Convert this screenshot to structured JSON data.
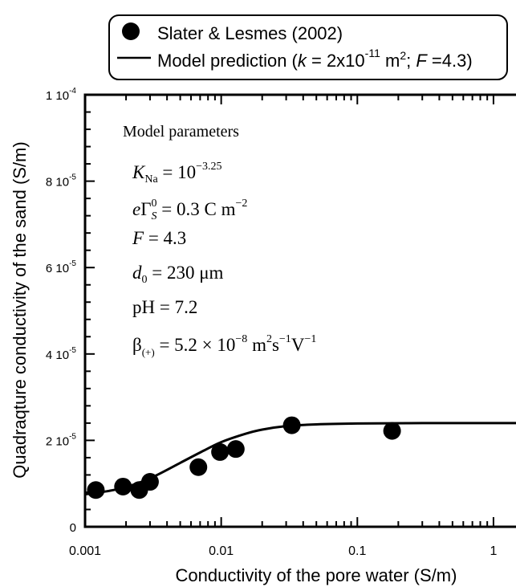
{
  "chart_data": {
    "type": "scatter",
    "xlabel": "Conductivity of the pore water (S/m)",
    "ylabel": "Quadraqture conductivity of the sand (S/m)",
    "x_scale": "log",
    "xlim": [
      0.001,
      2
    ],
    "ylim": [
      0,
      0.0001
    ],
    "x_ticks": [
      {
        "value": 0.001,
        "label": "0.001"
      },
      {
        "value": 0.01,
        "label": "0.01"
      },
      {
        "value": 0.1,
        "label": "0.1"
      },
      {
        "value": 1,
        "label": "1"
      }
    ],
    "y_ticks": [
      {
        "value": 0,
        "mant": "0",
        "exp": ""
      },
      {
        "value": 2e-05,
        "mant": "2 10",
        "exp": "-5"
      },
      {
        "value": 4e-05,
        "mant": "4 10",
        "exp": "-5"
      },
      {
        "value": 6e-05,
        "mant": "6 10",
        "exp": "-5"
      },
      {
        "value": 8e-05,
        "mant": "8 10",
        "exp": "-5"
      },
      {
        "value": 0.0001,
        "mant": "1 10",
        "exp": "-4"
      }
    ],
    "grid": false,
    "legend_position": "top-center",
    "legend": {
      "data_label": "Slater & Lesmes (2002)",
      "model_prefix": "Model prediction (",
      "model_k": "k",
      "model_k_eq": " = 2x10",
      "model_k_exp": "-11",
      "model_m": " m",
      "model_m_exp": "2",
      "model_sep": "; ",
      "model_F": "F",
      "model_F_eq": " =4.3)"
    },
    "series": [
      {
        "name": "Slater & Lesmes (2002)",
        "type": "scatter",
        "points": [
          {
            "x": 0.0012,
            "y": 8.5e-06
          },
          {
            "x": 0.0019,
            "y": 9.3e-06
          },
          {
            "x": 0.0025,
            "y": 8.5e-06
          },
          {
            "x": 0.003,
            "y": 1.04e-05
          },
          {
            "x": 0.0068,
            "y": 1.38e-05
          },
          {
            "x": 0.0098,
            "y": 1.73e-05
          },
          {
            "x": 0.0128,
            "y": 1.8e-05
          },
          {
            "x": 0.033,
            "y": 2.35e-05
          },
          {
            "x": 0.18,
            "y": 2.22e-05
          }
        ]
      },
      {
        "name": "Model prediction (k = 2x10-11 m2; F =4.3)",
        "type": "line",
        "points": [
          {
            "x": 0.001,
            "y": 7.5e-06
          },
          {
            "x": 0.0015,
            "y": 8.3e-06
          },
          {
            "x": 0.002,
            "y": 9.2e-06
          },
          {
            "x": 0.003,
            "y": 1.12e-05
          },
          {
            "x": 0.005,
            "y": 1.48e-05
          },
          {
            "x": 0.007,
            "y": 1.72e-05
          },
          {
            "x": 0.01,
            "y": 1.96e-05
          },
          {
            "x": 0.015,
            "y": 2.15e-05
          },
          {
            "x": 0.02,
            "y": 2.25e-05
          },
          {
            "x": 0.03,
            "y": 2.33e-05
          },
          {
            "x": 0.05,
            "y": 2.37e-05
          },
          {
            "x": 0.1,
            "y": 2.39e-05
          },
          {
            "x": 0.3,
            "y": 2.4e-05
          },
          {
            "x": 1,
            "y": 2.4e-05
          },
          {
            "x": 2,
            "y": 2.4e-05
          }
        ]
      }
    ],
    "annotation": {
      "heading": "Model parameters",
      "k_na_sym": "K",
      "k_na_sub": "Na",
      "k_na_eq": " = 10",
      "k_na_exp": "−3.25",
      "sigma_e": "e",
      "sigma_gamma": "Γ",
      "sigma_sup": "0",
      "sigma_sub": "S",
      "sigma_val": " = 0.3 C m",
      "sigma_exp": "−2",
      "f_sym": "F",
      "f_val": " = 4.3",
      "d0_sym": "d",
      "d0_sub": "0",
      "d0_val": " = 230  μm",
      "ph_text": "pH = 7.2",
      "beta_sym": "β",
      "beta_sub": "(+)",
      "beta_val": " = 5.2 × 10",
      "beta_exp": "−8",
      "beta_units_a": "  m",
      "beta_units_a_exp": "2",
      "beta_units_b": "s",
      "beta_units_b_exp": "−1",
      "beta_units_c": "V",
      "beta_units_c_exp": "−1"
    }
  }
}
